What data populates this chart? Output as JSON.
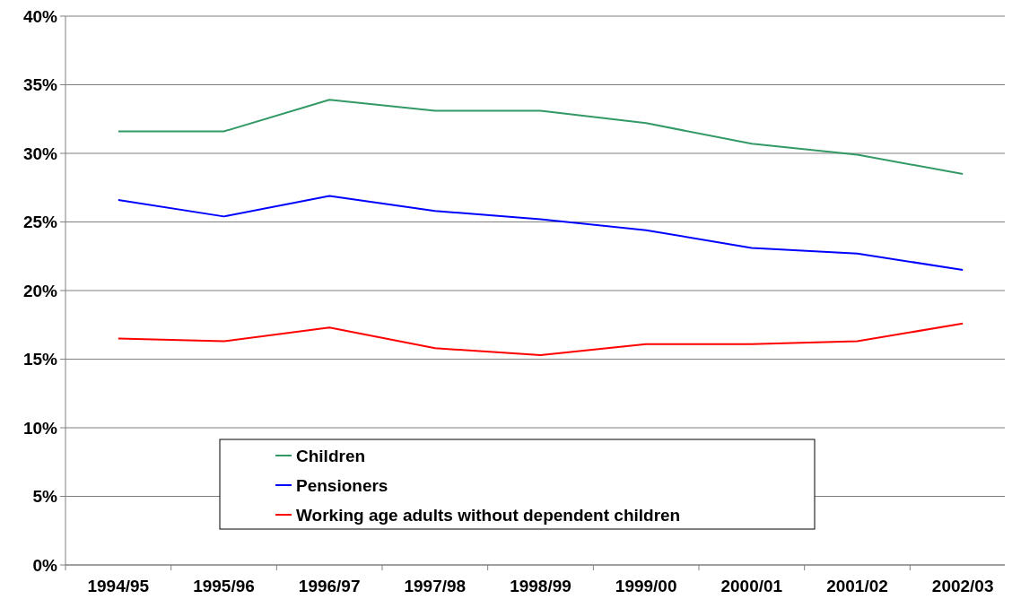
{
  "chart_data": {
    "type": "line",
    "categories": [
      "1994/95",
      "1995/96",
      "1996/97",
      "1997/98",
      "1998/99",
      "1999/00",
      "2000/01",
      "2001/02",
      "2002/03"
    ],
    "series": [
      {
        "name": "Children",
        "color": "#339966",
        "values": [
          31.6,
          31.6,
          33.9,
          33.1,
          33.1,
          32.2,
          30.7,
          29.9,
          28.5
        ]
      },
      {
        "name": "Pensioners",
        "color": "#0000ff",
        "values": [
          26.6,
          25.4,
          26.9,
          25.8,
          25.2,
          24.4,
          23.1,
          22.7,
          21.5
        ]
      },
      {
        "name": "Working age adults without dependent children",
        "color": "#ff0000",
        "values": [
          16.5,
          16.3,
          17.3,
          15.8,
          15.3,
          16.1,
          16.1,
          16.3,
          17.6
        ]
      }
    ],
    "ylim": [
      0,
      40
    ],
    "yticks": [
      {
        "value": 0,
        "label": "0%"
      },
      {
        "value": 5,
        "label": "5%"
      },
      {
        "value": 10,
        "label": "10%"
      },
      {
        "value": 15,
        "label": "15%"
      },
      {
        "value": 20,
        "label": "20%"
      },
      {
        "value": 25,
        "label": "25%"
      },
      {
        "value": 30,
        "label": "30%"
      },
      {
        "value": 35,
        "label": "35%"
      },
      {
        "value": 40,
        "label": "40%"
      }
    ],
    "grid": "y",
    "legend": "bottom",
    "marker": "none",
    "line_style": "solid"
  }
}
